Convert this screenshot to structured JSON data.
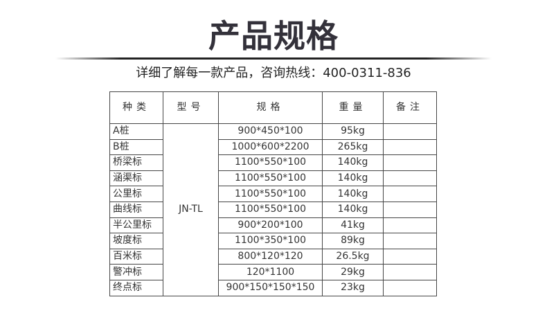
{
  "title": "产品规格",
  "subtitle": "详细了解每一款产品，咨询热线：400-0311-836",
  "table": {
    "headers": [
      "种类",
      "型号",
      "规格",
      "重量",
      "备注"
    ],
    "model": "JN-TL",
    "rows": [
      {
        "type": "A桩",
        "spec": "900*450*100",
        "weight": "95kg",
        "note": ""
      },
      {
        "type": "B桩",
        "spec": "1000*600*2200",
        "weight": "265kg",
        "note": ""
      },
      {
        "type": "桥梁标",
        "spec": "1100*550*100",
        "weight": "140kg",
        "note": ""
      },
      {
        "type": "涵渠标",
        "spec": "1100*550*100",
        "weight": "140kg",
        "note": ""
      },
      {
        "type": "公里标",
        "spec": "1100*550*100",
        "weight": "140kg",
        "note": ""
      },
      {
        "type": "曲线标",
        "spec": "1100*550*100",
        "weight": "140kg",
        "note": ""
      },
      {
        "type": "半公里标",
        "spec": "900*200*100",
        "weight": "41kg",
        "note": ""
      },
      {
        "type": "坡度标",
        "spec": "1100*350*100",
        "weight": "89kg",
        "note": ""
      },
      {
        "type": "百米标",
        "spec": "800*120*120",
        "weight": "26.5kg",
        "note": ""
      },
      {
        "type": "警冲标",
        "spec": "120*1100",
        "weight": "29kg",
        "note": ""
      },
      {
        "type": "终点标",
        "spec": "900*150*150*150",
        "weight": "23kg",
        "note": ""
      }
    ]
  }
}
